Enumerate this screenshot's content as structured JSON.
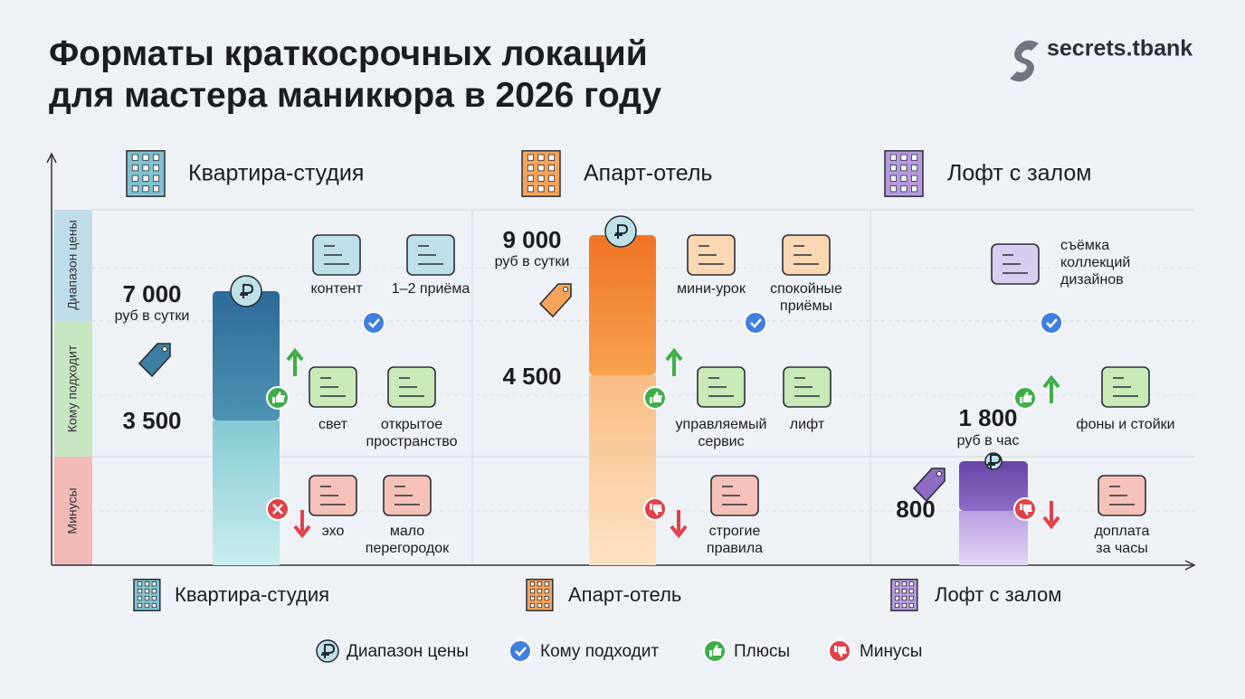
{
  "header": {
    "title": [
      "Форматы краткосрочных локаций",
      "для мастера маникюра в 2026 году"
    ],
    "brand": "secrets.tbank"
  },
  "rows": [
    "Диапазон цены",
    "Кому подходит",
    "Минусы"
  ],
  "columns": [
    {
      "name": "Квартира-студия",
      "price_high": "7 000",
      "price_unit": "руб в сутки",
      "price_low": "3 500",
      "suits": [
        [
          "контент"
        ],
        [
          "1–2 приёма"
        ]
      ],
      "pros": [
        [
          "свет"
        ],
        [
          "открытое",
          "пространство"
        ]
      ],
      "cons": [
        [
          "эхо"
        ],
        [
          "мало",
          "перегородок"
        ]
      ]
    },
    {
      "name": "Апарт-отель",
      "price_high": "9 000",
      "price_unit": "руб в сутки",
      "price_low": "4 500",
      "suits": [
        [
          "мини-урок"
        ],
        [
          "спокойные",
          "приёмы"
        ]
      ],
      "pros": [
        [
          "управляемый",
          "сервис"
        ],
        [
          "лифт"
        ]
      ],
      "cons": [
        [
          "строгие",
          "правила"
        ]
      ]
    },
    {
      "name": "Лофт с залом",
      "price_high": "1 800",
      "price_unit": "руб в час",
      "price_low": "800",
      "suits": [
        [
          "съёмка",
          "коллекций",
          "дизайнов"
        ]
      ],
      "pros": [
        [
          "фоны и стойки"
        ]
      ],
      "cons": [
        [
          "доплата",
          "за часы"
        ]
      ]
    }
  ],
  "legend": [
    "Диапазон цены",
    "Кому подходит",
    "Плюсы",
    "Минусы"
  ]
}
